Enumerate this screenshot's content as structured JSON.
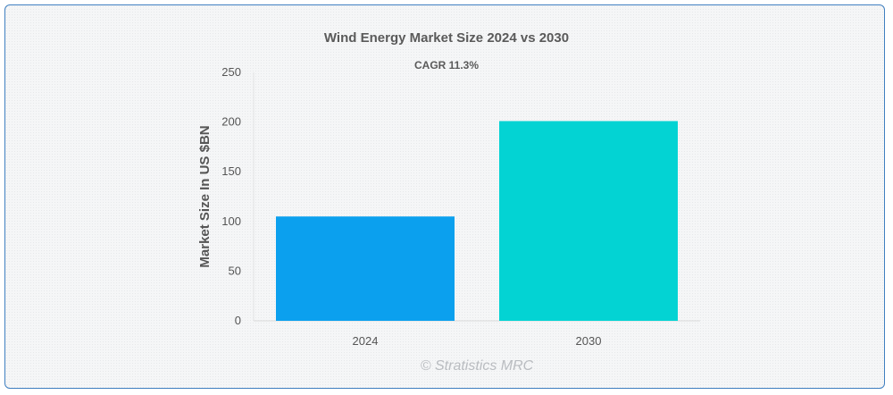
{
  "chart_data": {
    "type": "bar",
    "title": "Wind Energy Market Size 2024 vs 2030",
    "subtitle": "CAGR 11.3%",
    "categories": [
      "2024",
      "2030"
    ],
    "values": [
      105,
      201
    ],
    "colors": [
      "#0ba0ee",
      "#03d3d3"
    ],
    "xlabel": "",
    "ylabel": "Market Size In US $BN",
    "ylim": [
      0,
      250
    ],
    "yticks": [
      0,
      50,
      100,
      150,
      200,
      250
    ],
    "grid": false,
    "legend": "none"
  },
  "watermark": "© Stratistics MRC"
}
